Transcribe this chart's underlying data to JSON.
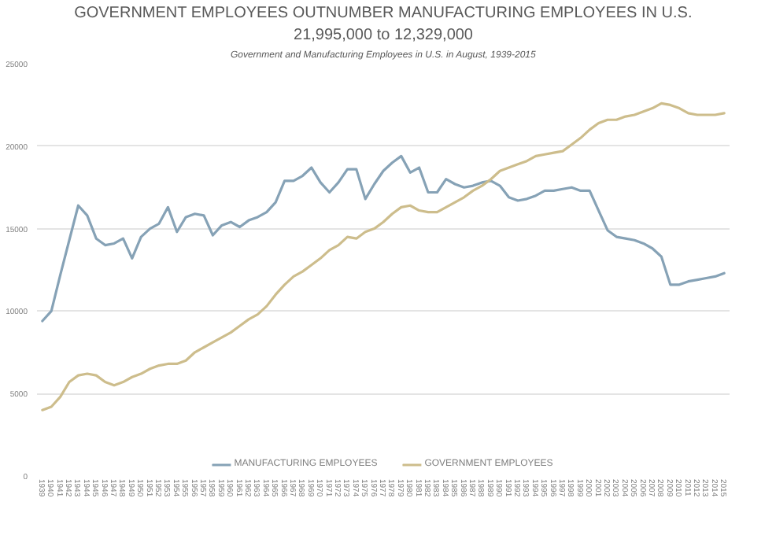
{
  "chart_data": {
    "type": "line",
    "title": "GOVERNMENT EMPLOYEES OUTNUMBER MANUFACTURING EMPLOYEES IN U.S.",
    "subtitle": "21,995,000 to 12,329,000",
    "annotations": [
      "Government and Manufacturing Employees in U.S. in August, 1939-2015"
    ],
    "categories": [
      "1939",
      "1940",
      "1941",
      "1942",
      "1943",
      "1944",
      "1945",
      "1946",
      "1947",
      "1948",
      "1949",
      "1950",
      "1951",
      "1952",
      "1953",
      "1954",
      "1955",
      "1956",
      "1957",
      "1958",
      "1959",
      "1960",
      "1961",
      "1962",
      "1963",
      "1964",
      "1965",
      "1966",
      "1967",
      "1968",
      "1969",
      "1970",
      "1971",
      "1972",
      "1973",
      "1974",
      "1975",
      "1976",
      "1977",
      "1978",
      "1979",
      "1980",
      "1981",
      "1982",
      "1983",
      "1984",
      "1985",
      "1986",
      "1987",
      "1988",
      "1989",
      "1990",
      "1991",
      "1992",
      "1993",
      "1994",
      "1995",
      "1996",
      "1997",
      "1998",
      "1999",
      "2000",
      "2001",
      "2002",
      "2003",
      "2004",
      "2005",
      "2006",
      "2007",
      "2008",
      "2009",
      "2010",
      "2011",
      "2012",
      "2013",
      "2014",
      "2015"
    ],
    "series": [
      {
        "name": "MANUFACTURING EMPLOYEES",
        "color": "#86a2b6",
        "values": [
          9400,
          10000,
          12200,
          14300,
          16400,
          15800,
          14400,
          14000,
          14100,
          14400,
          13200,
          14500,
          15000,
          15300,
          16300,
          14800,
          15700,
          15900,
          15800,
          14600,
          15200,
          15400,
          15100,
          15500,
          15700,
          16000,
          16600,
          17900,
          17900,
          18200,
          18700,
          17800,
          17200,
          17800,
          18600,
          18600,
          16800,
          17700,
          18500,
          19000,
          19400,
          18400,
          18700,
          17200,
          17200,
          18000,
          17700,
          17500,
          17600,
          17800,
          17900,
          17600,
          16900,
          16700,
          16800,
          17000,
          17300,
          17300,
          17400,
          17500,
          17300,
          17300,
          16100,
          14900,
          14500,
          14400,
          14300,
          14100,
          13800,
          13300,
          11600,
          11600,
          11800,
          11900,
          12000,
          12100,
          12300
        ]
      },
      {
        "name": "GOVERNMENT EMPLOYEES",
        "color": "#cdbd8c",
        "values": [
          4000,
          4200,
          4800,
          5700,
          6100,
          6200,
          6100,
          5700,
          5500,
          5700,
          6000,
          6200,
          6500,
          6700,
          6800,
          6800,
          7000,
          7500,
          7800,
          8100,
          8400,
          8700,
          9100,
          9500,
          9800,
          10300,
          11000,
          11600,
          12100,
          12400,
          12800,
          13200,
          13700,
          14000,
          14500,
          14400,
          14800,
          15000,
          15400,
          15900,
          16300,
          16400,
          16100,
          16000,
          16000,
          16300,
          16600,
          16900,
          17300,
          17600,
          18000,
          18500,
          18700,
          18900,
          19100,
          19400,
          19500,
          19600,
          19700,
          20100,
          20500,
          21000,
          21400,
          21600,
          21600,
          21800,
          21900,
          22100,
          22300,
          22600,
          22500,
          22300,
          22000,
          21900,
          21900,
          21900,
          22000
        ]
      }
    ],
    "ylim": [
      0,
      25000
    ],
    "yticks": [
      0,
      5000,
      10000,
      15000,
      20000,
      25000
    ],
    "grid": "y",
    "legend": "bottom"
  }
}
